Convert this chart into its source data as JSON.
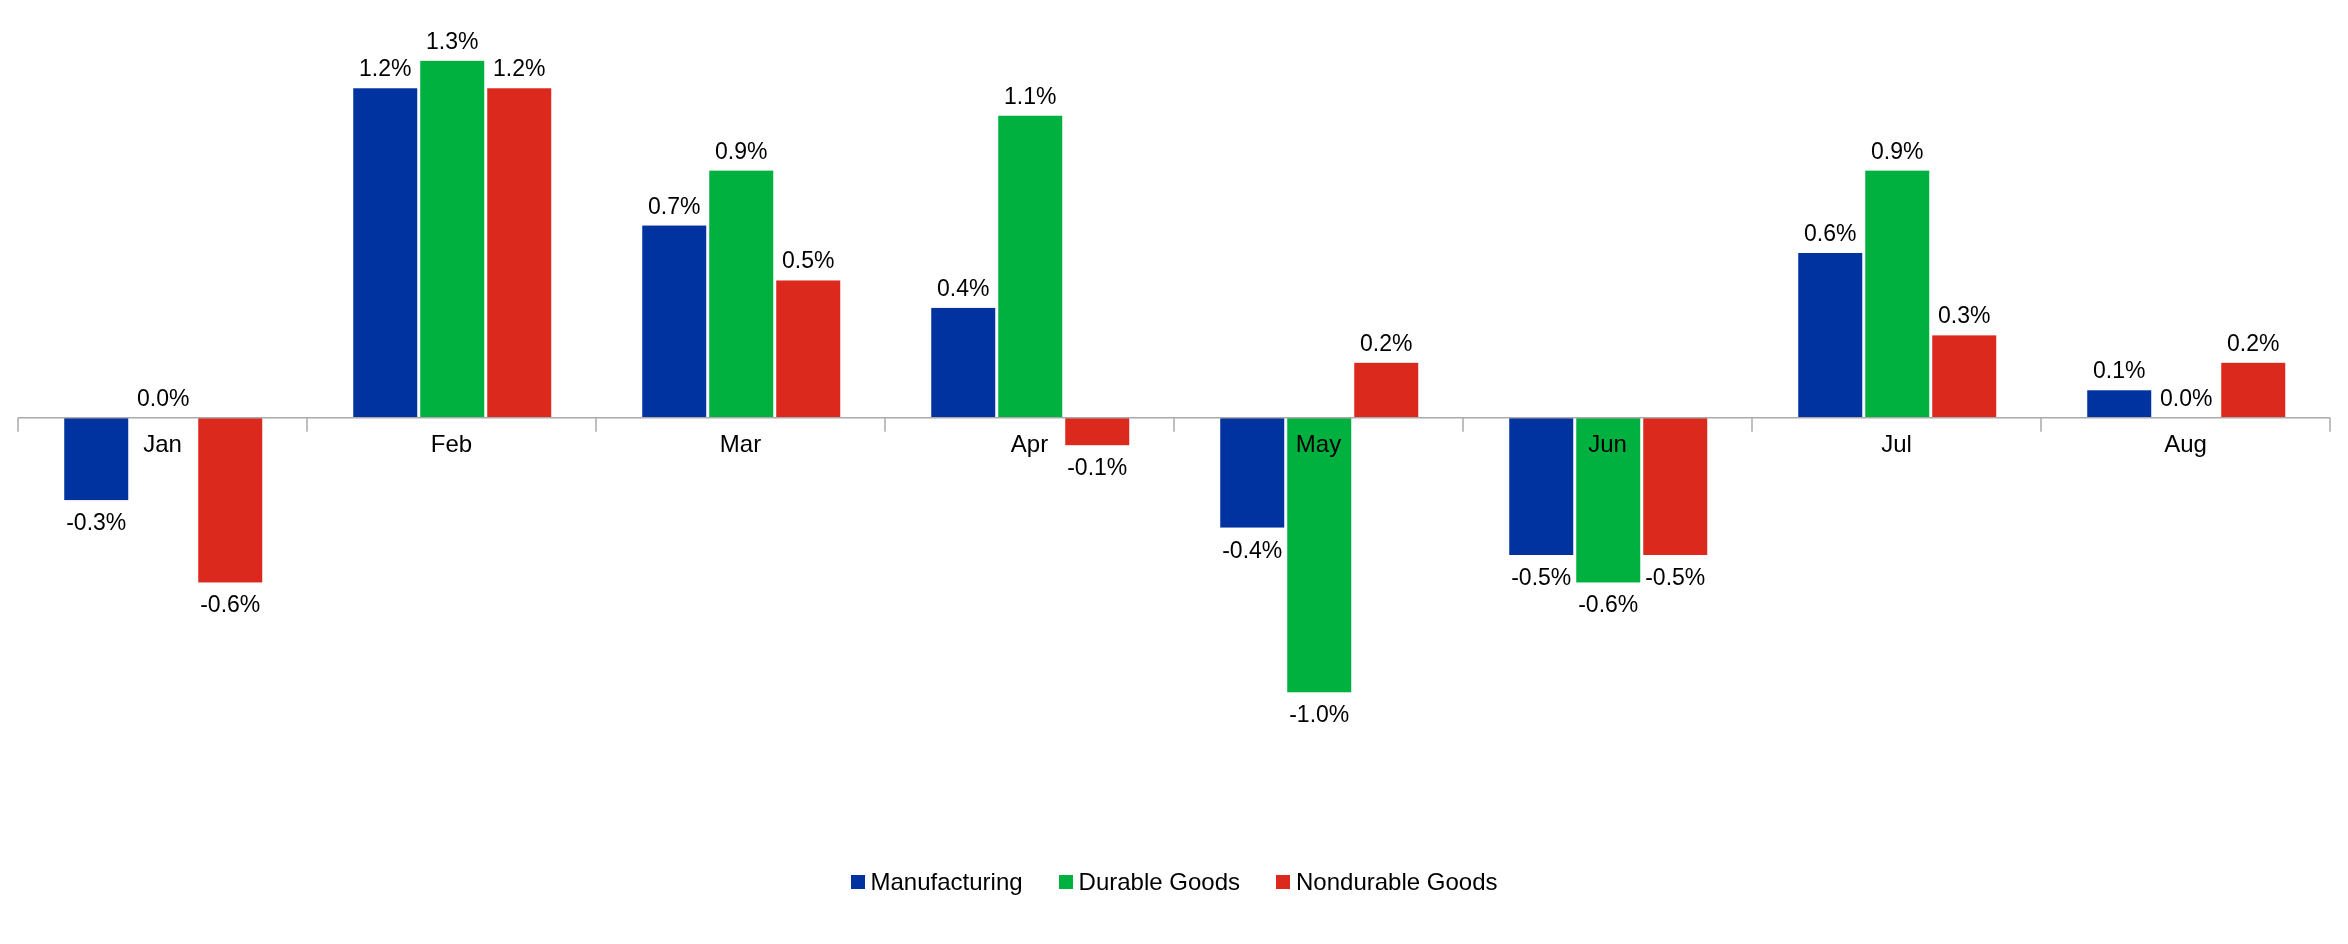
{
  "chart_data": {
    "type": "bar",
    "categories": [
      "Jan",
      "Feb",
      "Mar",
      "Apr",
      "May",
      "Jun",
      "Jul",
      "Aug"
    ],
    "series": [
      {
        "name": "Manufacturing",
        "color": "#0033a0",
        "values": [
          -0.3,
          1.2,
          0.7,
          0.4,
          -0.4,
          -0.5,
          0.6,
          0.1
        ],
        "value_labels": [
          "-0.3%",
          "1.2%",
          "0.7%",
          "0.4%",
          "-0.4%",
          "-0.5%",
          "0.6%",
          "0.1%"
        ]
      },
      {
        "name": "Durable Goods",
        "color": "#00b140",
        "values": [
          0.0,
          1.3,
          0.9,
          1.1,
          -1.0,
          -0.6,
          0.9,
          0.0
        ],
        "value_labels": [
          "0.0%",
          "1.3%",
          "0.9%",
          "1.1%",
          "-1.0%",
          "-0.6%",
          "0.9%",
          "0.0%"
        ]
      },
      {
        "name": "Nondurable Goods",
        "color": "#dc291e",
        "values": [
          -0.6,
          1.2,
          0.5,
          -0.1,
          0.2,
          -0.5,
          0.3,
          0.2
        ],
        "value_labels": [
          "-0.6%",
          "1.2%",
          "0.5%",
          "-0.1%",
          "0.2%",
          "-0.5%",
          "0.3%",
          "0.2%"
        ]
      }
    ],
    "legend": "bottom",
    "grid": false
  }
}
